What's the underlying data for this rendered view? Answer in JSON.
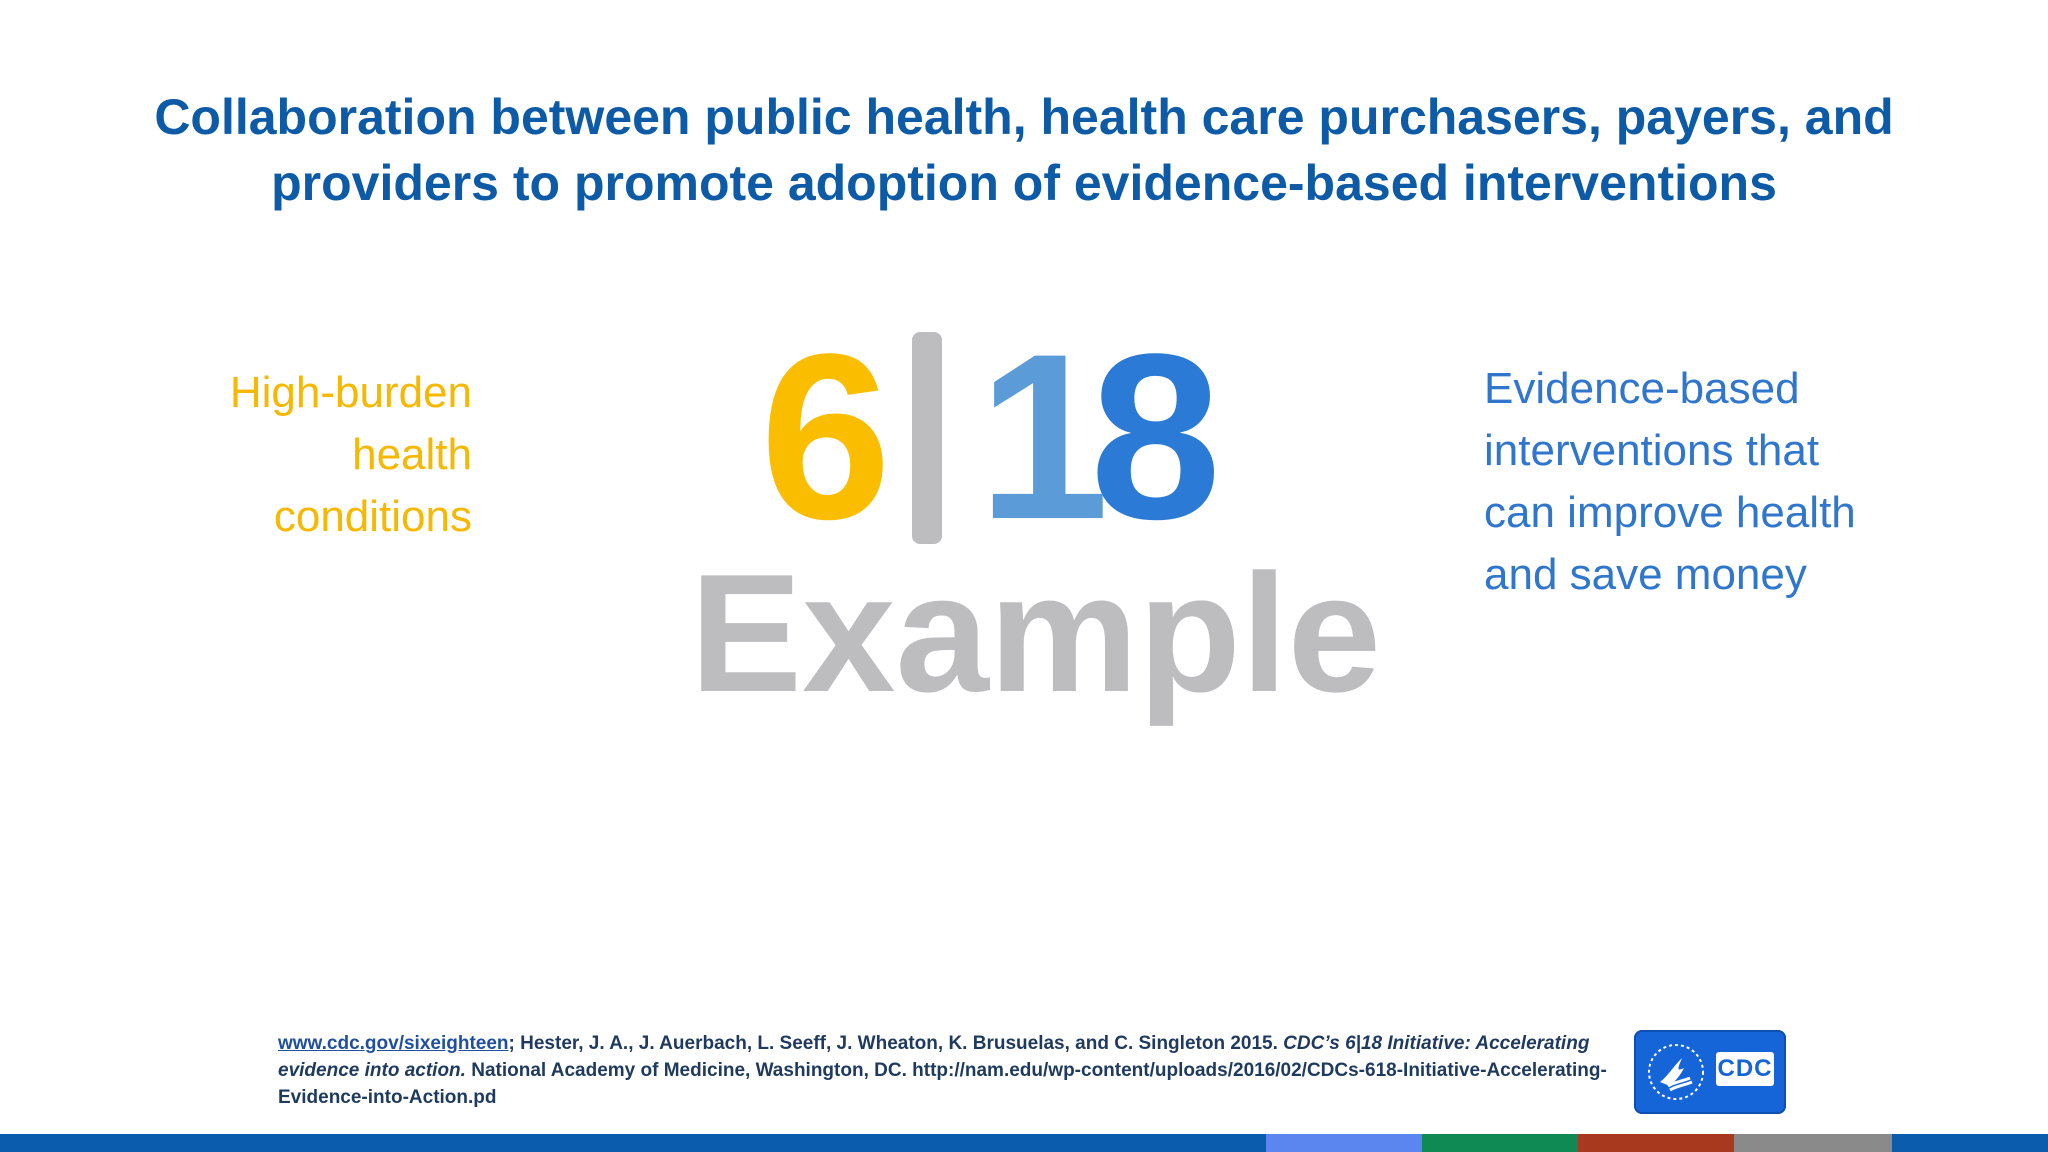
{
  "slide": {
    "title_lines": [
      "Collaboration between public health, health care purchasers, payers, and",
      "providers to promote adoption of evidence-based interventions"
    ],
    "left_label_lines": [
      "High-burden",
      "health",
      "conditions"
    ],
    "right_label_lines": [
      "Evidence-based",
      "interventions that",
      "can improve health",
      "and save money"
    ],
    "logo": {
      "num_left": "6",
      "num_right_a": "1",
      "num_right_b": "8"
    },
    "example_text": "Example",
    "citation": {
      "link_text": "www.cdc.gov/sixeighteen",
      "part1": "; Hester, J. A., J. Auerbach, L. Seeff, J. Wheaton, K. Brusuelas, and C. Singleton 2015. ",
      "italic_part": "CDC’s 6|18 Initiative: Accelerating evidence into action.",
      "part2": " National Academy of Medicine, Washington, DC. http://nam.edu/wp-content/uploads/2016/02/CDCs-618-Initiative-Accelerating-Evidence-into-Action.pd"
    },
    "cdc_logo_text": "CDC"
  },
  "colors": {
    "title": "#0d5aa7",
    "yellow": "#fbbd00",
    "light_blue": "#5b9bd8",
    "blue": "#2a7ad6",
    "gray": "#bdbdc0",
    "footer_segments": [
      "#0b5cad",
      "#5b86f0",
      "#108a55",
      "#a8381e",
      "#8a8a8a",
      "#0b5cad"
    ]
  }
}
